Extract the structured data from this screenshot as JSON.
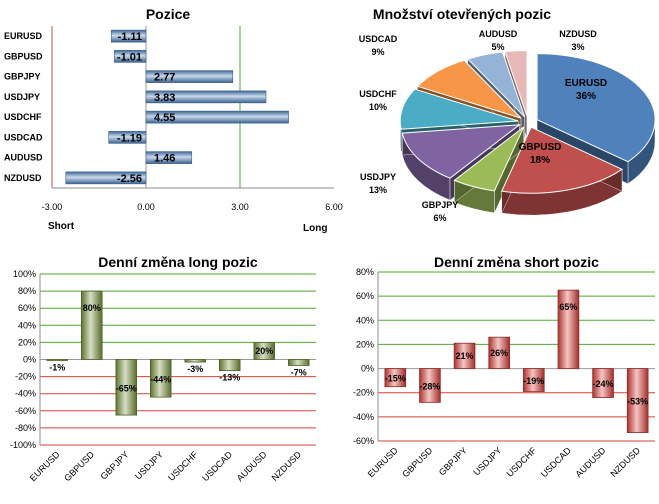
{
  "chart_data": [
    {
      "type": "bar",
      "orientation": "horizontal",
      "title": "Pozice",
      "categories": [
        "EURUSD",
        "GBPUSD",
        "GBPJPY",
        "USDJPY",
        "USDCHF",
        "USDCAD",
        "AUDUSD",
        "NZDUSD"
      ],
      "values": [
        -1.11,
        -1.01,
        2.77,
        3.83,
        4.55,
        -1.19,
        1.46,
        -2.56
      ],
      "value_labels": [
        "-1.11",
        "-1.01",
        "2.77",
        "3.83",
        "4.55",
        "-1.19",
        "1.46",
        "-2.56"
      ],
      "xlim": [
        -3.0,
        6.0
      ],
      "xticks": [
        "-3.00",
        "0.00",
        "3.00",
        "6.00"
      ],
      "left_label": "Short",
      "right_label": "Long",
      "bar_color": "#4f81bd"
    },
    {
      "type": "pie",
      "title": "Množství otevřených pozic",
      "slices": [
        {
          "label": "EURUSD",
          "value": 36,
          "text": "36%",
          "color": "#4f81bd"
        },
        {
          "label": "GBPUSD",
          "value": 18,
          "text": "18%",
          "color": "#c0504d"
        },
        {
          "label": "GBPJPY",
          "value": 6,
          "text": "6%",
          "color": "#9bbb59"
        },
        {
          "label": "USDJPY",
          "value": 13,
          "text": "13%",
          "color": "#8064a2"
        },
        {
          "label": "USDCHF",
          "value": 10,
          "text": "10%",
          "color": "#4bacc6"
        },
        {
          "label": "USDCAD",
          "value": 9,
          "text": "9%",
          "color": "#f79646"
        },
        {
          "label": "AUDUSD",
          "value": 5,
          "text": "5%",
          "color": "#95b3d7"
        },
        {
          "label": "NZDUSD",
          "value": 3,
          "text": "3%",
          "color": "#e6b9b8"
        }
      ]
    },
    {
      "type": "bar",
      "title": "Denní změna long pozic",
      "categories": [
        "EURUSD",
        "GBPUSD",
        "GBPJPY",
        "USDJPY",
        "USDCHF",
        "USDCAD",
        "AUDUSD",
        "NZDUSD"
      ],
      "values": [
        -1,
        80,
        -65,
        -44,
        -3,
        -13,
        20,
        -7
      ],
      "value_labels": [
        "-1%",
        "80%",
        "-65%",
        "-44%",
        "-3%",
        "-13%",
        "20%",
        "-7%"
      ],
      "ylim": [
        -100,
        100
      ],
      "yticks": [
        "-100%",
        "-80%",
        "-60%",
        "-40%",
        "-20%",
        "0%",
        "20%",
        "40%",
        "60%",
        "80%",
        "100%"
      ],
      "bar_color": "#76923c",
      "grid_color": "#4ea72e"
    },
    {
      "type": "bar",
      "title": "Denní změna short pozic",
      "categories": [
        "EURUSD",
        "GBPUSD",
        "GBPJPY",
        "USDJPY",
        "USDCHF",
        "USDCAD",
        "AUDUSD",
        "NZDUSD"
      ],
      "values": [
        -15,
        -28,
        21,
        26,
        -19,
        65,
        -24,
        -53
      ],
      "value_labels": [
        "-15%",
        "-28%",
        "21%",
        "26%",
        "-19%",
        "65%",
        "-24%",
        "-53%"
      ],
      "ylim": [
        -60,
        80
      ],
      "yticks": [
        "-60%",
        "-40%",
        "-20%",
        "0%",
        "20%",
        "40%",
        "60%",
        "80%"
      ],
      "bar_color": "#d9403a",
      "grid_top_color": "#4ea72e",
      "grid_bottom_color": "#d9403a"
    }
  ]
}
